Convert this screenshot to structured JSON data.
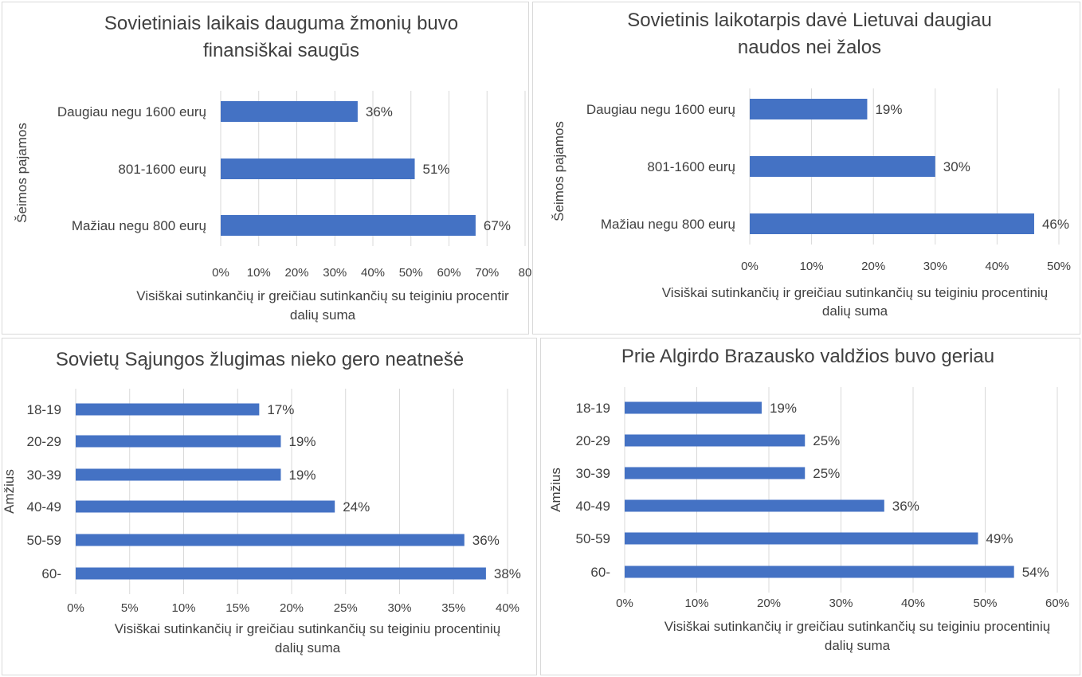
{
  "colors": {
    "bar": "#4472c4",
    "grid": "#d9d9d9",
    "text": "#404040"
  },
  "chart_data": [
    {
      "type": "bar",
      "orientation": "horizontal",
      "title_lines": [
        "Sovietiniais laikais dauguma žmonių buvo",
        "finansiškai saugūs"
      ],
      "ylabel": "Šeimos pajamos",
      "xlabel_lines": [
        "Visiškai sutinkančių ir greičiau sutinkančių su teiginiu procentir",
        "dalių suma"
      ],
      "categories": [
        "Daugiau negu 1600 eurų",
        "801-1600 eurų",
        "Mažiau negu 800 eurų"
      ],
      "values": [
        36,
        51,
        67
      ],
      "data_labels": [
        "36%",
        "51%",
        "67%"
      ],
      "xlim": [
        0,
        80
      ],
      "ticks": [
        0,
        10,
        20,
        30,
        40,
        50,
        60,
        70,
        80
      ],
      "tick_labels": [
        "0%",
        "10%",
        "20%",
        "30%",
        "40%",
        "50%",
        "60%",
        "70%",
        "80"
      ],
      "grid": true,
      "legend": "none"
    },
    {
      "type": "bar",
      "orientation": "horizontal",
      "title_lines": [
        "Sovietinis laikotarpis davė Lietuvai daugiau",
        "naudos nei žalos"
      ],
      "ylabel": "Šeimos pajamos",
      "xlabel_lines": [
        "Visiškai sutinkančių ir greičiau sutinkančių su teiginiu procentinių",
        "dalių suma"
      ],
      "categories": [
        "Daugiau negu 1600 eurų",
        "801-1600 eurų",
        "Mažiau negu 800 eurų"
      ],
      "values": [
        19,
        30,
        46
      ],
      "data_labels": [
        "19%",
        "30%",
        "46%"
      ],
      "xlim": [
        0,
        50
      ],
      "ticks": [
        0,
        10,
        20,
        30,
        40,
        50
      ],
      "tick_labels": [
        "0%",
        "10%",
        "20%",
        "30%",
        "40%",
        "50%"
      ],
      "grid": true,
      "legend": "none"
    },
    {
      "type": "bar",
      "orientation": "horizontal",
      "title_lines": [
        "Sovietų Sąjungos žlugimas nieko gero neatnešė"
      ],
      "ylabel": "Amžius",
      "xlabel_lines": [
        "Visiškai sutinkančių ir greičiau sutinkančių su teiginiu procentinių",
        "dalių suma"
      ],
      "categories": [
        "18-19",
        "20-29",
        "30-39",
        "40-49",
        "50-59",
        "60-"
      ],
      "values": [
        17,
        19,
        19,
        24,
        36,
        38
      ],
      "data_labels": [
        "17%",
        "19%",
        "19%",
        "24%",
        "36%",
        "38%"
      ],
      "xlim": [
        0,
        40
      ],
      "ticks": [
        0,
        5,
        10,
        15,
        20,
        25,
        30,
        35,
        40
      ],
      "tick_labels": [
        "0%",
        "5%",
        "10%",
        "15%",
        "20%",
        "25%",
        "30%",
        "35%",
        "40%"
      ],
      "grid": true,
      "legend": "none"
    },
    {
      "type": "bar",
      "orientation": "horizontal",
      "title_lines": [
        "Prie Algirdo Brazausko valdžios buvo geriau"
      ],
      "ylabel": "Amžius",
      "xlabel_lines": [
        "Visiškai sutinkančių ir greičiau sutinkančių su teiginiu procentinių",
        "dalių suma"
      ],
      "categories": [
        "18-19",
        "20-29",
        "30-39",
        "40-49",
        "50-59",
        "60-"
      ],
      "values": [
        19,
        25,
        25,
        36,
        49,
        54
      ],
      "data_labels": [
        "19%",
        "25%",
        "25%",
        "36%",
        "49%",
        "54%"
      ],
      "xlim": [
        0,
        60
      ],
      "ticks": [
        0,
        10,
        20,
        30,
        40,
        50,
        60
      ],
      "tick_labels": [
        "0%",
        "10%",
        "20%",
        "30%",
        "40%",
        "50%",
        "60%"
      ],
      "grid": true,
      "legend": "none"
    }
  ]
}
